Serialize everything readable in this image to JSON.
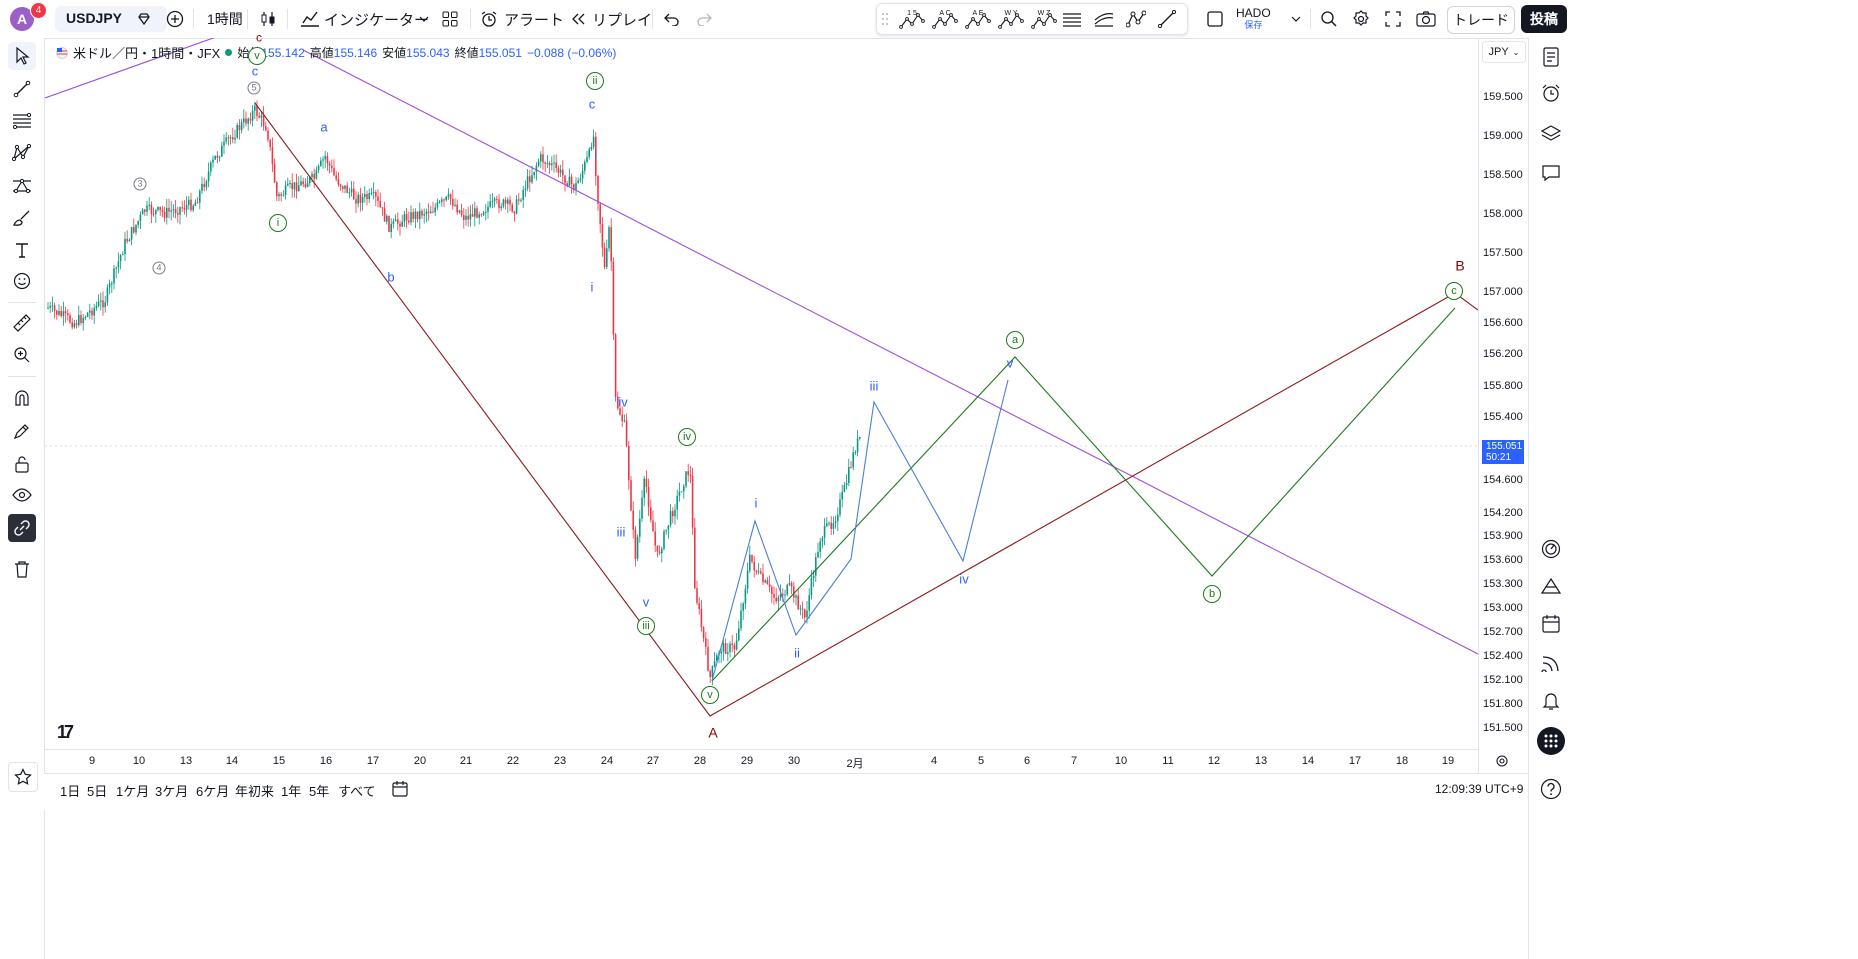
{
  "topbar": {
    "avatar_letter": "A",
    "notification_count": "4",
    "symbol": "USDJPY",
    "interval": "1時間",
    "indicators_label": "インジケーター",
    "alert_label": "アラート",
    "replay_label": "リプレイ",
    "layout_name": "HADO",
    "layout_status": "保存",
    "trade_label": "トレード",
    "post_label": "投稿",
    "pattern_tools": [
      {
        "top": "1 5",
        "name": "pattern-15-icon"
      },
      {
        "top": "A C",
        "name": "pattern-ac-icon"
      },
      {
        "top": "A E",
        "name": "pattern-ae-icon"
      },
      {
        "top": "W Y",
        "name": "pattern-wy-icon"
      },
      {
        "top": "W Z",
        "name": "pattern-wz-icon"
      }
    ]
  },
  "legend": {
    "title": "米ドル／円・1時間・JFX",
    "open_label": "始値",
    "open": "155.142",
    "high_label": "高値",
    "high": "155.146",
    "low_label": "安値",
    "low": "155.043",
    "close_label": "終値",
    "close": "155.051",
    "change": "−0.088 (−0.06%)"
  },
  "price_axis": {
    "currency": "JPY",
    "labels": [
      "159.500",
      "159.000",
      "158.500",
      "158.000",
      "157.500",
      "157.000",
      "156.600",
      "156.200",
      "155.800",
      "155.400",
      "154.600",
      "154.200",
      "153.900",
      "153.600",
      "153.300",
      "153.000",
      "152.700",
      "152.400",
      "152.100",
      "151.800",
      "151.500"
    ],
    "current_price": "155.051",
    "countdown": "50:21"
  },
  "time_axis": {
    "labels": [
      "9",
      "10",
      "13",
      "14",
      "15",
      "16",
      "17",
      "20",
      "21",
      "22",
      "23",
      "24",
      "27",
      "28",
      "29",
      "30",
      "2月",
      "4",
      "5",
      "6",
      "7",
      "10",
      "11",
      "12",
      "13",
      "14",
      "17",
      "18",
      "19"
    ]
  },
  "bottom": {
    "ranges": [
      "1日",
      "5日",
      "1ケ月",
      "3ケ月",
      "6ケ月",
      "年初来",
      "1年",
      "5年",
      "すべて"
    ],
    "clock": "12:09:39 UTC+9"
  },
  "wave_labels": {
    "top_v": "v",
    "top_c": "c",
    "top_5": "5",
    "top_red_c": "c",
    "i_circle": "i",
    "l3": "3",
    "l4": "4",
    "a": "a",
    "b": "b",
    "ii_circle": "ii",
    "c2": "c",
    "i_small": "i",
    "i_small2": "i",
    "iv_small": "iv",
    "iii_small": "iii",
    "v_small": "v",
    "iii_circle": "iii",
    "iv_circle": "iv",
    "v_circle": "v",
    "A": "A",
    "B": "B",
    "i2": "i",
    "ii2": "ii",
    "iii2": "iii",
    "iv2": "iv",
    "v2": "v",
    "a_circle": "a",
    "b_circle": "b",
    "c_circle": "c"
  },
  "colors": {
    "up": "#089981",
    "down": "#f23645",
    "accent": "#2962ff",
    "wave_red": "#8b1a1a",
    "wave_green": "#1b7a1b",
    "trend_purple": "#9c4fd8",
    "projection_blue": "#4a7fd6"
  }
}
